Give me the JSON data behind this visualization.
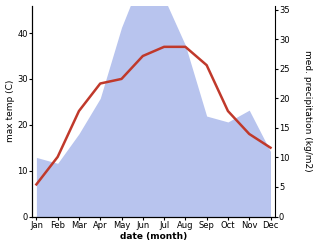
{
  "months": [
    "Jan",
    "Feb",
    "Mar",
    "Apr",
    "May",
    "Jun",
    "Jul",
    "Aug",
    "Sep",
    "Oct",
    "Nov",
    "Dec"
  ],
  "month_x": [
    1,
    2,
    3,
    4,
    5,
    6,
    7,
    8,
    9,
    10,
    11,
    12
  ],
  "temp": [
    7,
    13,
    23,
    29,
    30,
    35,
    37,
    37,
    33,
    23,
    18,
    15
  ],
  "precip": [
    10,
    9,
    14,
    20,
    32,
    41,
    37,
    29,
    17,
    16,
    18,
    11
  ],
  "temp_color": "#c0392b",
  "precip_color": "#b8c4ee",
  "temp_lw": 1.8,
  "left_ylim": [
    0,
    46
  ],
  "right_ylim": [
    0,
    35.7
  ],
  "left_yticks": [
    0,
    10,
    20,
    30,
    40
  ],
  "right_yticks": [
    0,
    5,
    10,
    15,
    20,
    25,
    30,
    35
  ],
  "xlabel": "date (month)",
  "ylabel_left": "max temp (C)",
  "ylabel_right": "med. precipitation (kg/m2)",
  "bg_color": "#ffffff",
  "fig_width": 3.18,
  "fig_height": 2.47,
  "label_fontsize": 6.5,
  "tick_fontsize": 6.0
}
